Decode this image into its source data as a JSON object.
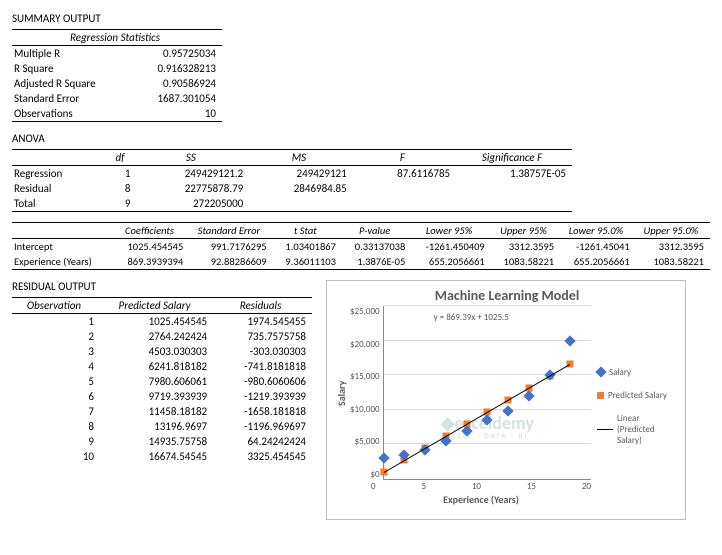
{
  "summary": {
    "title": "SUMMARY OUTPUT",
    "header": "Regression Statistics",
    "rows": [
      {
        "label": "Multiple R",
        "value": "0.95725034"
      },
      {
        "label": "R Square",
        "value": "0.916328213"
      },
      {
        "label": "Adjusted R Square",
        "value": "0.90586924"
      },
      {
        "label": "Standard Error",
        "value": "1687.301054"
      },
      {
        "label": "Observations",
        "value": "10"
      }
    ]
  },
  "anova": {
    "title": "ANOVA",
    "headers": [
      "",
      "df",
      "SS",
      "MS",
      "F",
      "Significance F"
    ],
    "rows": [
      {
        "label": "Regression",
        "df": "1",
        "ss": "249429121.2",
        "ms": "249429121",
        "f": "87.6116785",
        "sig": "1.38757E-05"
      },
      {
        "label": "Residual",
        "df": "8",
        "ss": "22775878.79",
        "ms": "2846984.85",
        "f": "",
        "sig": ""
      },
      {
        "label": "Total",
        "df": "9",
        "ss": "272205000",
        "ms": "",
        "f": "",
        "sig": ""
      }
    ]
  },
  "coef": {
    "headers": [
      "",
      "Coefficients",
      "Standard Error",
      "t Stat",
      "P-value",
      "Lower 95%",
      "Upper 95%",
      "Lower 95.0%",
      "Upper 95.0%"
    ],
    "rows": [
      {
        "label": "Intercept",
        "c": "1025.454545",
        "se": "991.7176295",
        "t": "1.03401867",
        "p": "0.33137038",
        "l95": "-1261.450409",
        "u95": "3312.3595",
        "l950": "-1261.45041",
        "u950": "3312.3595"
      },
      {
        "label": "Experience (Years)",
        "c": "869.3939394",
        "se": "92.88286609",
        "t": "9.36011103",
        "p": "1.3876E-05",
        "l95": "655.2056661",
        "u95": "1083.58221",
        "l950": "655.2056661",
        "u950": "1083.58221"
      }
    ]
  },
  "residual": {
    "title": "RESIDUAL OUTPUT",
    "headers": [
      "Observation",
      "Predicted Salary",
      "Residuals"
    ],
    "rows": [
      {
        "obs": "1",
        "pred": "1025.454545",
        "res": "1974.545455"
      },
      {
        "obs": "2",
        "pred": "2764.242424",
        "res": "735.7575758"
      },
      {
        "obs": "3",
        "pred": "4503.030303",
        "res": "-303.030303"
      },
      {
        "obs": "4",
        "pred": "6241.818182",
        "res": "-741.8181818"
      },
      {
        "obs": "5",
        "pred": "7980.606061",
        "res": "-980.6060606"
      },
      {
        "obs": "6",
        "pred": "9719.393939",
        "res": "-1219.393939"
      },
      {
        "obs": "7",
        "pred": "11458.18182",
        "res": "-1658.181818"
      },
      {
        "obs": "8",
        "pred": "13196.9697",
        "res": "-1196.969697"
      },
      {
        "obs": "9",
        "pred": "14935.75758",
        "res": "64.24242424"
      },
      {
        "obs": "10",
        "pred": "16674.54545",
        "res": "3325.454545"
      }
    ]
  },
  "chart": {
    "title": "Machine Learning Model",
    "equation": "y = 869.39x + 1025.5",
    "x_label": "Experience (Years)",
    "y_label": "Salary",
    "x_ticks": [
      "0",
      "5",
      "10",
      "15",
      "20"
    ],
    "y_ticks": [
      "$0",
      "$5,000",
      "$10,000",
      "$15,000",
      "$20,000",
      "$25,000"
    ],
    "xlim": [
      0,
      20
    ],
    "ylim": [
      0,
      25000
    ],
    "salary_points": [
      {
        "x": 0,
        "y": 3000
      },
      {
        "x": 2,
        "y": 3500
      },
      {
        "x": 4,
        "y": 4200
      },
      {
        "x": 6,
        "y": 5500
      },
      {
        "x": 8,
        "y": 7000
      },
      {
        "x": 10,
        "y": 8500
      },
      {
        "x": 12,
        "y": 9800
      },
      {
        "x": 14,
        "y": 12000
      },
      {
        "x": 16,
        "y": 15000
      },
      {
        "x": 18,
        "y": 20000
      }
    ],
    "predicted_points": [
      {
        "x": 0,
        "y": 1025.45
      },
      {
        "x": 2,
        "y": 2764.24
      },
      {
        "x": 4,
        "y": 4503.03
      },
      {
        "x": 6,
        "y": 6241.82
      },
      {
        "x": 8,
        "y": 7980.61
      },
      {
        "x": 10,
        "y": 9719.39
      },
      {
        "x": 12,
        "y": 11458.18
      },
      {
        "x": 14,
        "y": 13196.97
      },
      {
        "x": 16,
        "y": 14935.76
      },
      {
        "x": 18,
        "y": 16674.55
      }
    ],
    "colors": {
      "salary": "#4472c4",
      "predicted": "#ed7d31",
      "trend": "#000000",
      "grid": "#d9d9d9",
      "axis": "#888888",
      "text": "#595959"
    },
    "legend": {
      "salary": "Salary",
      "predicted": "Predicted Salary",
      "trend": "Linear (Predicted Salary)"
    }
  },
  "watermark": {
    "brand": "exceldemy",
    "tag": "EXCEL · DATA · BI"
  }
}
